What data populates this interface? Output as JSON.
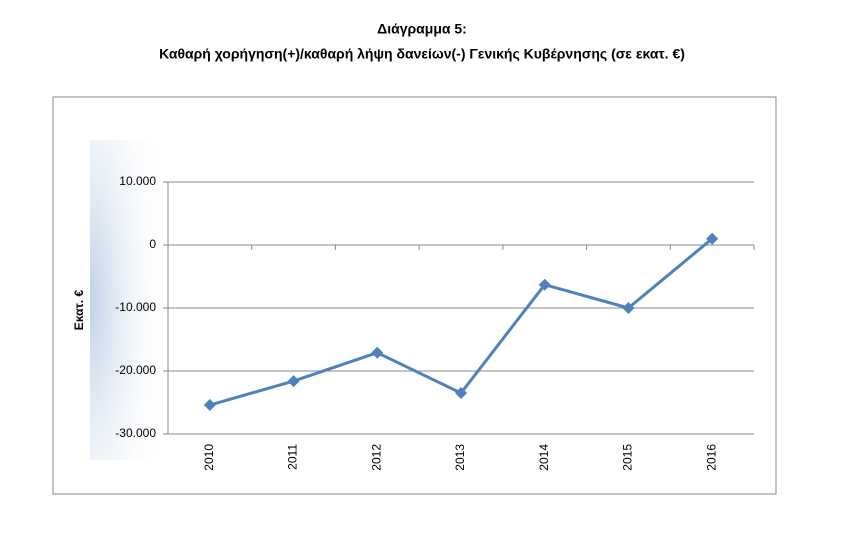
{
  "chart_data": {
    "type": "line",
    "title": "Διάγραμμα 5:",
    "subtitle": "Καθαρή χορήγηση(+)/καθαρή λήψη δανείων(-) Γενικής Κυβέρνησης (σε εκατ. €)",
    "y_label": "Εκατ. €",
    "categories": [
      "2010",
      "2011",
      "2012",
      "2013",
      "2014",
      "2015",
      "2016"
    ],
    "series": [
      {
        "color": "#4f81bd",
        "values": [
          -25400,
          -21600,
          -17100,
          -23500,
          -6300,
          -10000,
          1000
        ]
      }
    ],
    "ylim": [
      -30000,
      10000
    ],
    "yticks": [
      {
        "value": -30000,
        "label": "-30.000"
      },
      {
        "value": -20000,
        "label": "-20.000"
      },
      {
        "value": -10000,
        "label": "-10.000"
      },
      0,
      {
        "value": 10000,
        "label": "10.000"
      }
    ],
    "grid": true
  }
}
